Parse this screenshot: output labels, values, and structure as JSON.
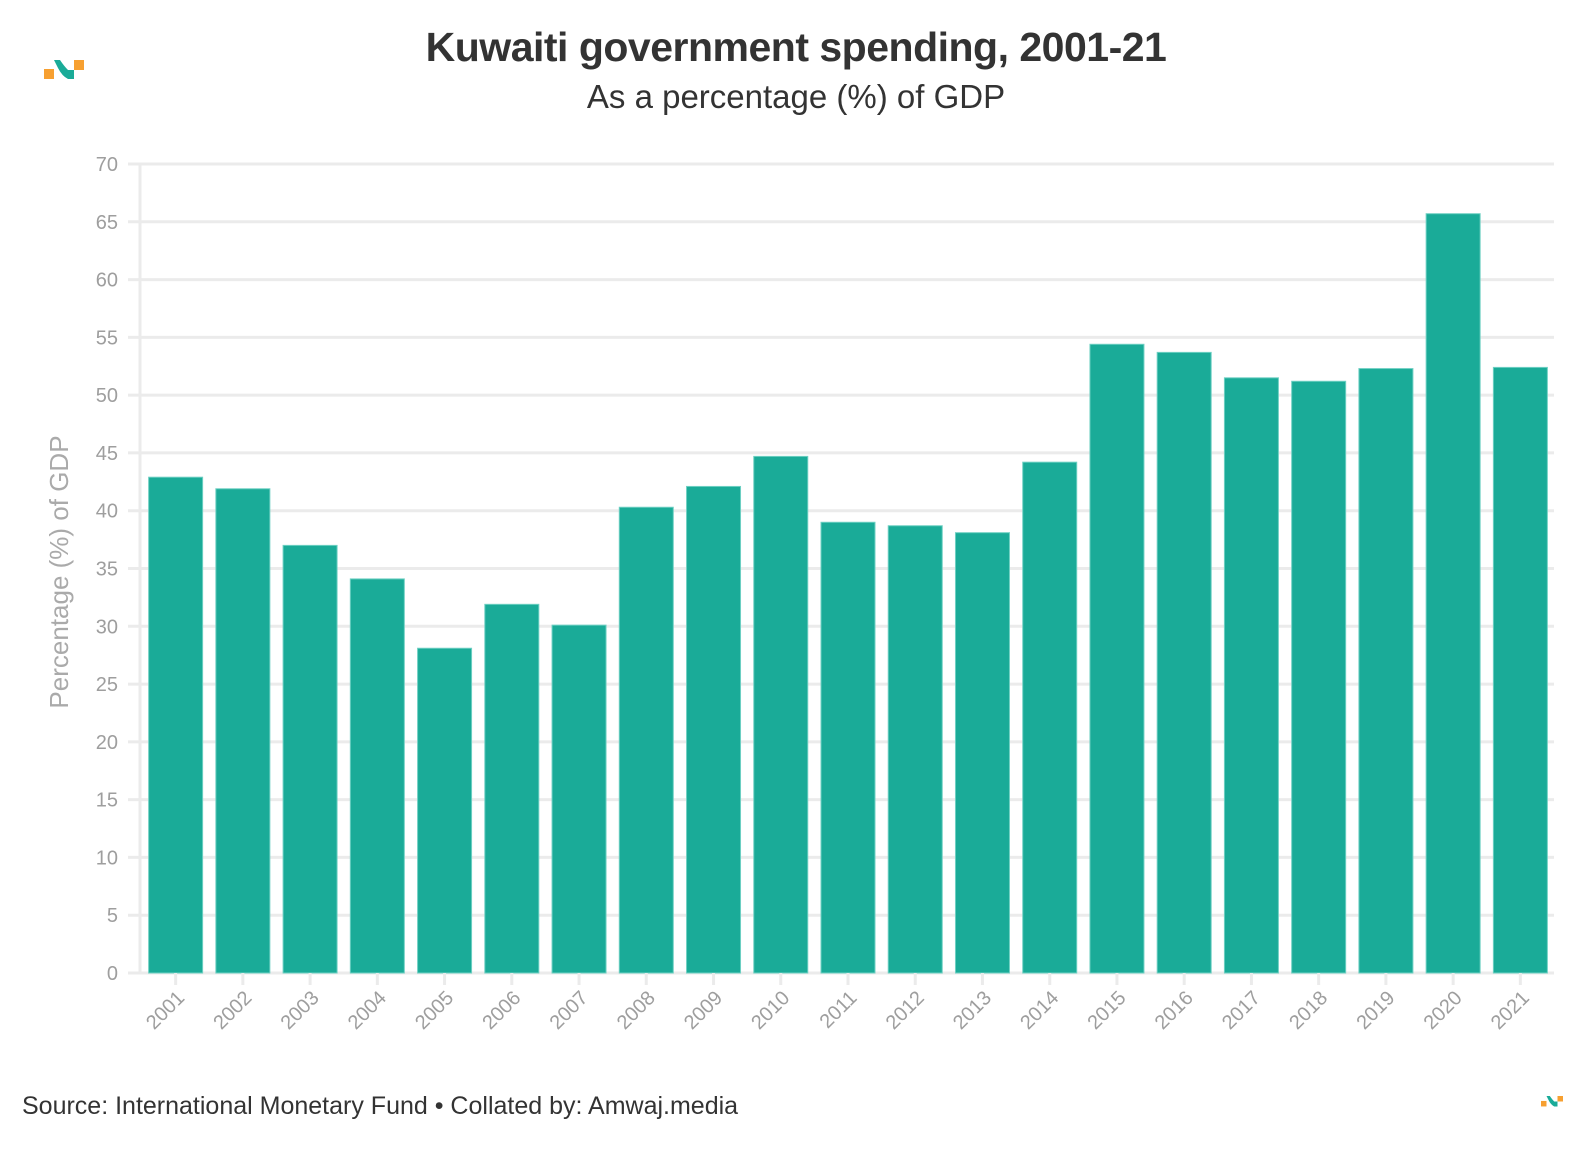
{
  "header": {
    "title": "Kuwaiti government spending, 2001-21",
    "subtitle": "As a percentage (%) of GDP"
  },
  "footer": {
    "source": "Source: International Monetary Fund • Collated by: Amwaj.media"
  },
  "brand": {
    "logo_icon": "amwaj-logo-icon",
    "accent_orange": "#f7a031",
    "accent_teal": "#1aab98"
  },
  "chart_data": {
    "type": "bar",
    "title": "Kuwaiti government spending, 2001-21",
    "subtitle": "As a percentage (%) of GDP",
    "xlabel": "",
    "ylabel": "Percentage (%) of GDP",
    "ylim": [
      0,
      70
    ],
    "yticks": [
      0,
      5,
      10,
      15,
      20,
      25,
      30,
      35,
      40,
      45,
      50,
      55,
      60,
      65,
      70
    ],
    "grid": true,
    "legend": "none",
    "bar_color": "#1aab98",
    "categories": [
      "2001",
      "2002",
      "2003",
      "2004",
      "2005",
      "2006",
      "2007",
      "2008",
      "2009",
      "2010",
      "2011",
      "2012",
      "2013",
      "2014",
      "2015",
      "2016",
      "2017",
      "2018",
      "2019",
      "2020",
      "2021"
    ],
    "values": [
      42.9,
      41.9,
      37.0,
      34.1,
      28.1,
      31.9,
      30.1,
      40.3,
      42.1,
      44.7,
      39.0,
      38.7,
      38.1,
      44.2,
      54.4,
      53.7,
      51.5,
      51.2,
      52.3,
      65.7,
      52.4
    ]
  }
}
